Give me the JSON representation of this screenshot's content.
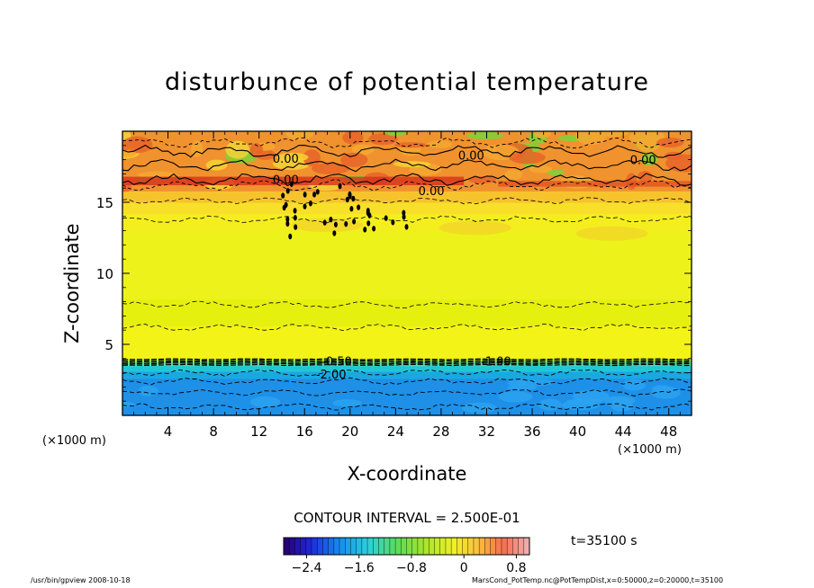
{
  "title": "disturbunce of potential temperature",
  "contour_interval": "CONTOUR INTERVAL = 2.500E-01",
  "time_label": "t=35100 s",
  "x_unit_left": "(×1000 m)",
  "x_unit_right": "(×1000 m)",
  "footer": {
    "left": "/usr/bin/gpview   2008-10-18",
    "right": "MarsCond_PotTemp.nc@PotTempDist,x=0:50000,z=0:20000,t=35100"
  },
  "chart_data": {
    "type": "heatmap",
    "title": "disturbunce of potential temperature",
    "xlabel": "X-coordinate",
    "ylabel": "Z-coordinate",
    "xlim": [
      0,
      50
    ],
    "ylim": [
      0,
      20
    ],
    "x_ticks": [
      4,
      8,
      12,
      16,
      20,
      24,
      28,
      32,
      36,
      40,
      44,
      48
    ],
    "y_ticks": [
      5,
      10,
      15
    ],
    "contour_labels": [
      {
        "text": "0.00",
        "x": 13.2,
        "z": 16.3
      },
      {
        "text": "0.00",
        "x": 13.2,
        "z": 17.8
      },
      {
        "text": "0.00",
        "x": 29.5,
        "z": 18.0
      },
      {
        "text": "0.00",
        "x": 44.6,
        "z": 17.7
      },
      {
        "text": "0.00",
        "x": 26.0,
        "z": 15.5
      },
      {
        "text": "-0.50",
        "x": 17.5,
        "z": 3.5
      },
      {
        "text": "-1.00",
        "x": 31.5,
        "z": 3.5
      },
      {
        "text": "-2.00",
        "x": 17.0,
        "z": 2.6
      }
    ],
    "colorbar": {
      "min": -2.75,
      "max": 1.0,
      "ticks": [
        -2.4,
        -1.6,
        -0.8,
        0,
        0.8
      ],
      "tick_labels": [
        "−2.4",
        "−1.6",
        "−0.8",
        "0",
        "0.8"
      ]
    }
  }
}
